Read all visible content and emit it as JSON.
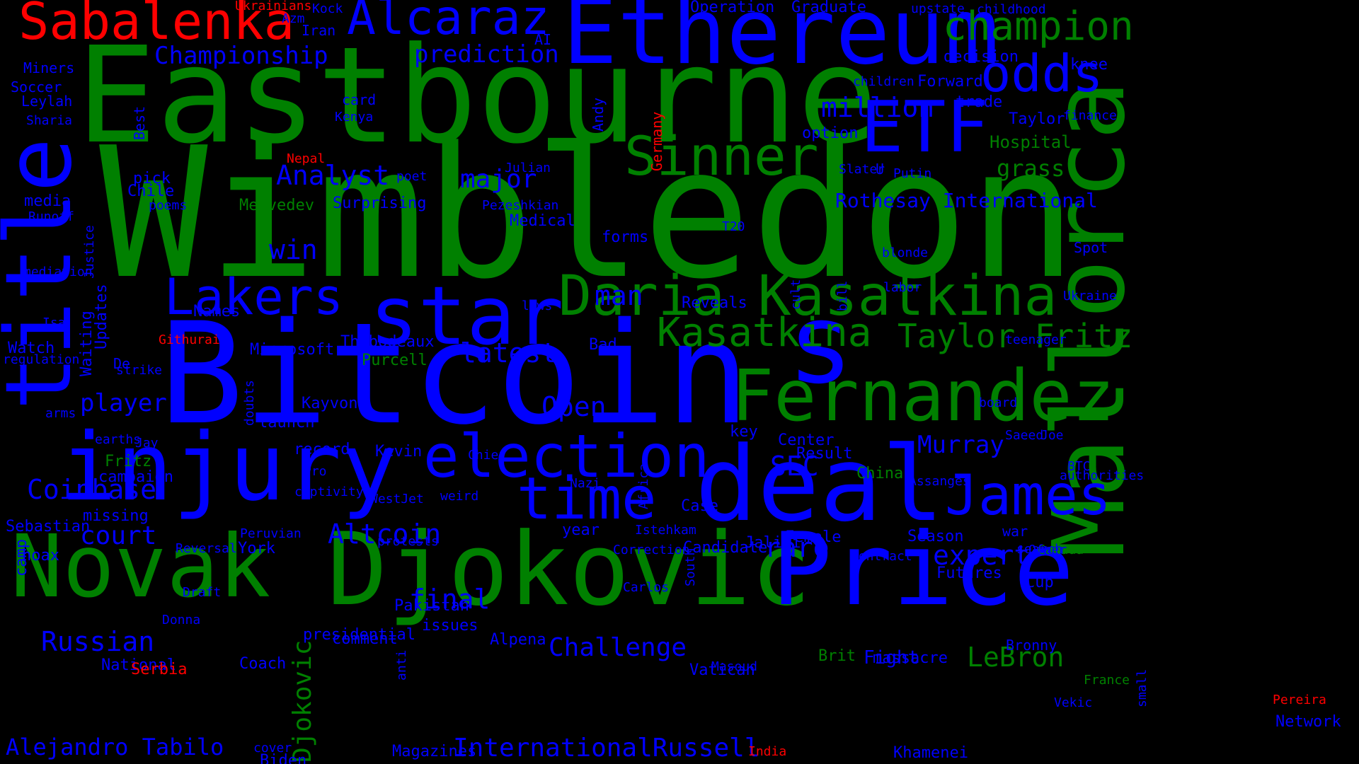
{
  "colors": {
    "background": "#000000",
    "blue": "#0000FF",
    "green": "#008000",
    "red": "#FF0000"
  },
  "words": [
    {
      "text": "Wimbledon",
      "color": "green"
    },
    {
      "text": "Bitcoin",
      "color": "blue"
    },
    {
      "text": "Eastbourne",
      "color": "green"
    },
    {
      "text": "Ethereum",
      "color": "blue"
    },
    {
      "text": "Djokovic",
      "color": "green"
    },
    {
      "text": "Price",
      "color": "blue"
    },
    {
      "text": "Novak",
      "color": "green"
    },
    {
      "text": "injury",
      "color": "blue"
    },
    {
      "text": "deal",
      "color": "blue"
    },
    {
      "text": "title",
      "color": "blue"
    },
    {
      "text": "Mallorca",
      "color": "green"
    },
    {
      "text": "s",
      "color": "blue"
    },
    {
      "text": "star",
      "color": "blue"
    },
    {
      "text": "Fernandez",
      "color": "green"
    },
    {
      "text": "ETF",
      "color": "blue"
    },
    {
      "text": "Daria Kasatkina",
      "color": "green"
    },
    {
      "text": "Sabalenka",
      "color": "red"
    },
    {
      "text": "Alcaraz",
      "color": "blue"
    },
    {
      "text": "election",
      "color": "blue"
    },
    {
      "text": "time",
      "color": "blue"
    },
    {
      "text": "James",
      "color": "blue"
    },
    {
      "text": "odds",
      "color": "blue"
    },
    {
      "text": "champion",
      "color": "green"
    },
    {
      "text": "Sinner",
      "color": "green"
    },
    {
      "text": "Lakers",
      "color": "blue"
    },
    {
      "text": "Kasatkina",
      "color": "green"
    },
    {
      "text": "Taylor Fritz",
      "color": "green"
    },
    {
      "text": "Coinbase",
      "color": "blue"
    },
    {
      "text": "Altcoin",
      "color": "blue"
    },
    {
      "text": "Russian",
      "color": "blue"
    },
    {
      "text": "LeBron",
      "color": "green"
    },
    {
      "text": "million",
      "color": "blue"
    },
    {
      "text": "Championship",
      "color": "blue"
    },
    {
      "text": "prediction",
      "color": "blue"
    },
    {
      "text": "Analyst",
      "color": "blue"
    },
    {
      "text": "major",
      "color": "blue"
    },
    {
      "text": "win",
      "color": "blue"
    },
    {
      "text": "man",
      "color": "blue"
    },
    {
      "text": "latest",
      "color": "blue"
    },
    {
      "text": "Open",
      "color": "blue"
    },
    {
      "text": "SEC",
      "color": "blue"
    },
    {
      "text": "Murray",
      "color": "blue"
    },
    {
      "text": "expert",
      "color": "blue"
    },
    {
      "text": "rare",
      "color": "blue"
    },
    {
      "text": "final",
      "color": "blue"
    },
    {
      "text": "Challenge",
      "color": "blue"
    },
    {
      "text": "court",
      "color": "blue"
    },
    {
      "text": "player",
      "color": "blue"
    },
    {
      "text": "InternationalRussell",
      "color": "blue"
    },
    {
      "text": "Alejandro Tabilo",
      "color": "blue"
    },
    {
      "text": "Djokovic",
      "color": "green"
    },
    {
      "text": "Rothesay International",
      "color": "blue"
    },
    {
      "text": "grass",
      "color": "green"
    },
    {
      "text": "Fight",
      "color": "blue"
    },
    {
      "text": "Hospital",
      "color": "green"
    },
    {
      "text": "Taylor",
      "color": "blue"
    },
    {
      "text": "Forward",
      "color": "blue"
    },
    {
      "text": "trade",
      "color": "blue"
    },
    {
      "text": "option",
      "color": "blue"
    },
    {
      "text": "decision",
      "color": "blue"
    },
    {
      "text": "knee",
      "color": "blue"
    },
    {
      "text": "Operation",
      "color": "blue"
    },
    {
      "text": "Graduate",
      "color": "blue"
    },
    {
      "text": "upstate",
      "color": "blue"
    },
    {
      "text": "childhood",
      "color": "blue"
    },
    {
      "text": "Iran",
      "color": "blue"
    },
    {
      "text": "Kock",
      "color": "blue"
    },
    {
      "text": "AI",
      "color": "blue"
    },
    {
      "text": "Ukrainians",
      "color": "red"
    },
    {
      "text": "Azm",
      "color": "blue"
    },
    {
      "text": "Miners",
      "color": "blue"
    },
    {
      "text": "Soccer",
      "color": "blue"
    },
    {
      "text": "Leylah",
      "color": "blue"
    },
    {
      "text": "Sharia",
      "color": "blue"
    },
    {
      "text": "Best",
      "color": "blue"
    },
    {
      "text": "card",
      "color": "blue"
    },
    {
      "text": "Kenya",
      "color": "blue"
    },
    {
      "text": "Nepal",
      "color": "red"
    },
    {
      "text": "pick",
      "color": "blue"
    },
    {
      "text": "Chile",
      "color": "blue"
    },
    {
      "text": "media",
      "color": "blue"
    },
    {
      "text": "poems",
      "color": "blue"
    },
    {
      "text": "Runoff",
      "color": "blue"
    },
    {
      "text": "Medvedev",
      "color": "green"
    },
    {
      "text": "Surprising",
      "color": "blue"
    },
    {
      "text": "poet",
      "color": "blue"
    },
    {
      "text": "Julian",
      "color": "blue"
    },
    {
      "text": "Pezeshkian",
      "color": "blue"
    },
    {
      "text": "Medical",
      "color": "blue"
    },
    {
      "text": "Germany",
      "color": "red"
    },
    {
      "text": "Andy",
      "color": "blue"
    },
    {
      "text": "children",
      "color": "blue"
    },
    {
      "text": "U",
      "color": "blue"
    },
    {
      "text": "Putin",
      "color": "blue"
    },
    {
      "text": "Slater",
      "color": "blue"
    },
    {
      "text": "finance",
      "color": "blue"
    },
    {
      "text": "Spot",
      "color": "blue"
    },
    {
      "text": "blonde",
      "color": "blue"
    },
    {
      "text": "T20",
      "color": "blue"
    },
    {
      "text": "forms",
      "color": "blue"
    },
    {
      "text": "Names",
      "color": "blue"
    },
    {
      "text": "mediation",
      "color": "blue"
    },
    {
      "text": "Justice",
      "color": "blue"
    },
    {
      "text": "Updates",
      "color": "blue"
    },
    {
      "text": "Isa",
      "color": "blue"
    },
    {
      "text": "Githurai",
      "color": "red"
    },
    {
      "text": "Watch",
      "color": "blue"
    },
    {
      "text": "regulation",
      "color": "blue"
    },
    {
      "text": "Microsoft",
      "color": "blue"
    },
    {
      "text": "Thibodeaux",
      "color": "blue"
    },
    {
      "text": "Bad",
      "color": "blue"
    },
    {
      "text": "laws",
      "color": "blue"
    },
    {
      "text": "cult",
      "color": "blue"
    },
    {
      "text": "bill",
      "color": "blue"
    },
    {
      "text": "labor",
      "color": "blue"
    },
    {
      "text": "Reveals",
      "color": "blue"
    },
    {
      "text": "Ukraine",
      "color": "blue"
    },
    {
      "text": "teenager",
      "color": "blue"
    },
    {
      "text": "Purcell",
      "color": "green"
    },
    {
      "text": "strike",
      "color": "blue"
    },
    {
      "text": "De",
      "color": "blue"
    },
    {
      "text": "Waiting",
      "color": "blue"
    },
    {
      "text": "arms",
      "color": "blue"
    },
    {
      "text": "Kayvon",
      "color": "blue"
    },
    {
      "text": "launch",
      "color": "blue"
    },
    {
      "text": "doubts",
      "color": "blue"
    },
    {
      "text": "earths",
      "color": "blue"
    },
    {
      "text": "Jay",
      "color": "blue"
    },
    {
      "text": "record",
      "color": "blue"
    },
    {
      "text": "Kevin",
      "color": "blue"
    },
    {
      "text": "Chief",
      "color": "blue"
    },
    {
      "text": "key",
      "color": "blue"
    },
    {
      "text": "Center",
      "color": "blue"
    },
    {
      "text": "Result",
      "color": "blue"
    },
    {
      "text": "board",
      "color": "blue"
    },
    {
      "text": "Joe",
      "color": "blue"
    },
    {
      "text": "Saeed",
      "color": "blue"
    },
    {
      "text": "Fritz",
      "color": "green"
    },
    {
      "text": "campaign",
      "color": "blue"
    },
    {
      "text": "Pro",
      "color": "blue"
    },
    {
      "text": "captivity",
      "color": "blue"
    },
    {
      "text": "weird",
      "color": "blue"
    },
    {
      "text": "Nazi",
      "color": "blue"
    },
    {
      "text": "Africa",
      "color": "blue"
    },
    {
      "text": "China",
      "color": "green"
    },
    {
      "text": "Assanges",
      "color": "blue"
    },
    {
      "text": "BTC",
      "color": "blue"
    },
    {
      "text": "authorities",
      "color": "blue"
    },
    {
      "text": "WestJet",
      "color": "blue"
    },
    {
      "text": "missing",
      "color": "blue"
    },
    {
      "text": "Sebastian",
      "color": "blue"
    },
    {
      "text": "Case",
      "color": "blue"
    },
    {
      "text": "Peruvian",
      "color": "blue"
    },
    {
      "text": "year",
      "color": "blue"
    },
    {
      "text": "Istehkam",
      "color": "blue"
    },
    {
      "text": "protests",
      "color": "blue"
    },
    {
      "text": "Female",
      "color": "blue"
    },
    {
      "text": "Season",
      "color": "blue"
    },
    {
      "text": "war",
      "color": "blue"
    },
    {
      "text": "Canada",
      "color": "green"
    },
    {
      "text": "hoax",
      "color": "blue"
    },
    {
      "text": "Reversal",
      "color": "blue"
    },
    {
      "text": "York",
      "color": "blue"
    },
    {
      "text": "Correction",
      "color": "blue"
    },
    {
      "text": "Candidate",
      "color": "blue"
    },
    {
      "text": "Jalili",
      "color": "blue"
    },
    {
      "text": "Ofner",
      "color": "blue"
    },
    {
      "text": "search",
      "color": "blue"
    },
    {
      "text": "contract",
      "color": "blue"
    },
    {
      "text": "Futures",
      "color": "blue"
    },
    {
      "text": "Cup",
      "color": "blue"
    },
    {
      "text": "camp",
      "color": "blue"
    },
    {
      "text": "Draft",
      "color": "blue"
    },
    {
      "text": "Carlos",
      "color": "blue"
    },
    {
      "text": "Pakistan",
      "color": "blue"
    },
    {
      "text": "South",
      "color": "blue"
    },
    {
      "text": "issues",
      "color": "blue"
    },
    {
      "text": "Donna",
      "color": "blue"
    },
    {
      "text": "presidential",
      "color": "blue"
    },
    {
      "text": "comment",
      "color": "blue"
    },
    {
      "text": "Alpena",
      "color": "blue"
    },
    {
      "text": "Bronny",
      "color": "blue"
    },
    {
      "text": "Brit",
      "color": "green"
    },
    {
      "text": "National",
      "color": "blue"
    },
    {
      "text": "massacre",
      "color": "blue"
    },
    {
      "text": "Serbia",
      "color": "red"
    },
    {
      "text": "Coach",
      "color": "blue"
    },
    {
      "text": "Masoud",
      "color": "blue"
    },
    {
      "text": "Vatican",
      "color": "blue"
    },
    {
      "text": "France",
      "color": "green"
    },
    {
      "text": "anti",
      "color": "blue"
    },
    {
      "text": "Vekic",
      "color": "blue"
    },
    {
      "text": "small",
      "color": "blue"
    },
    {
      "text": "Pereira",
      "color": "red"
    },
    {
      "text": "Network",
      "color": "blue"
    },
    {
      "text": "cover",
      "color": "blue"
    },
    {
      "text": "Biden",
      "color": "blue"
    },
    {
      "text": "Magazines",
      "color": "blue"
    },
    {
      "text": "India",
      "color": "red"
    },
    {
      "text": "Khamenei",
      "color": "blue"
    }
  ]
}
